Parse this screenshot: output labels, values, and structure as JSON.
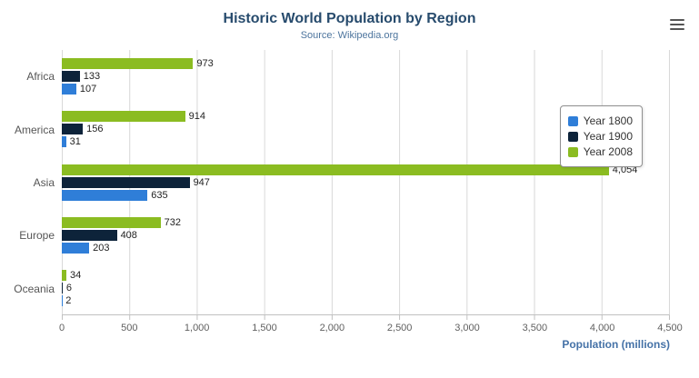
{
  "title": "Historic World Population by Region",
  "subtitle": "Source: Wikipedia.org",
  "menu_icon": "hamburger-export-menu",
  "chart_data": {
    "type": "bar",
    "orientation": "horizontal",
    "categories": [
      "Africa",
      "America",
      "Asia",
      "Europe",
      "Oceania"
    ],
    "series": [
      {
        "name": "Year 1800",
        "color": "#2f7ed8",
        "values": [
          107,
          31,
          635,
          203,
          2
        ]
      },
      {
        "name": "Year 1900",
        "color": "#0d233a",
        "values": [
          133,
          156,
          947,
          408,
          6
        ]
      },
      {
        "name": "Year 2008",
        "color": "#8bbc21",
        "values": [
          973,
          914,
          4054,
          732,
          34
        ]
      }
    ],
    "xlabel": "Population (millions)",
    "ylabel": "",
    "xlim": [
      0,
      4500
    ],
    "xticks": [
      0,
      500,
      1000,
      1500,
      2000,
      2500,
      3000,
      3500,
      4000,
      4500
    ],
    "tick_labels": [
      "0",
      "500",
      "1,000",
      "1,500",
      "2,000",
      "2,500",
      "3,000",
      "3,500",
      "4,000",
      "4,500"
    ],
    "grid": true,
    "legend_position": "right",
    "bar_display_order_top_to_bottom": [
      "Year 2008",
      "Year 1900",
      "Year 1800"
    ],
    "colors": {
      "title": "#274b6d",
      "subtitle": "#4d759e",
      "axis_label": "#4572a7",
      "tick_label": "#606060",
      "gridline": "#d8d8d8"
    }
  }
}
